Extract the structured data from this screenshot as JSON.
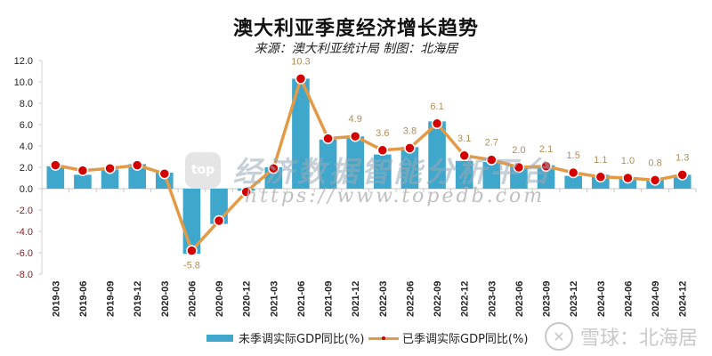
{
  "header": {
    "title": "澳大利亚季度经济增长趋势",
    "subtitle": "来源：澳大利亚统计局 制图：北海居"
  },
  "watermarks": {
    "center_logo": "top",
    "center_text": "经济数据智能分析平台",
    "center_url": "https://www.topedb.com",
    "corner_text": "雪球：北海居"
  },
  "legend": {
    "bar_label": "未季调实际GDP同比(%)",
    "line_label": "已季调实际GDP同比(%)"
  },
  "colors": {
    "bar": "#3ea7cb",
    "bar_light": "#6cc0dc",
    "line": "#e39a47",
    "marker": "#d40000",
    "label": "#b08d5a",
    "neg_tick": "#8b1a1a"
  },
  "chart_data": {
    "type": "bar+line",
    "title": "澳大利亚季度经济增长趋势",
    "subtitle": "来源：澳大利亚统计局 制图：北海居",
    "xlabel": "",
    "ylabel": "",
    "ylim": [
      -8.0,
      12.0
    ],
    "yticks": [
      "12.0",
      "10.0",
      "8.0",
      "6.0",
      "4.0",
      "2.0",
      "0.0",
      "-2.0",
      "-4.0",
      "-6.0",
      "-8.0"
    ],
    "grid": false,
    "legend_position": "bottom",
    "categories": [
      "2019-03",
      "2019-06",
      "2019-09",
      "2019-12",
      "2020-03",
      "2020-06",
      "2020-09",
      "2020-12",
      "2021-03",
      "2021-06",
      "2021-09",
      "2021-12",
      "2022-03",
      "2022-06",
      "2022-09",
      "2022-12",
      "2023-03",
      "2023-06",
      "2023-09",
      "2023-12",
      "2024-03",
      "2024-06",
      "2024-09",
      "2024-12"
    ],
    "series": [
      {
        "name": "未季调实际GDP同比(%)",
        "type": "bar",
        "values": [
          2.1,
          1.3,
          1.8,
          2.3,
          1.5,
          -6.1,
          -3.3,
          -0.2,
          2.0,
          10.3,
          4.6,
          4.9,
          3.2,
          3.9,
          6.3,
          2.6,
          2.5,
          2.1,
          2.2,
          1.2,
          1.3,
          1.0,
          0.8,
          1.3
        ]
      },
      {
        "name": "已季调实际GDP同比(%)",
        "type": "line",
        "values": [
          2.2,
          1.7,
          1.9,
          2.2,
          1.4,
          -5.8,
          -3.0,
          -0.3,
          1.9,
          10.3,
          4.7,
          4.9,
          3.6,
          3.8,
          6.1,
          3.1,
          2.7,
          2.0,
          2.1,
          1.5,
          1.1,
          1.0,
          0.8,
          1.3
        ],
        "data_labels": {
          "5": "-5.8",
          "9": "10.3",
          "11": "4.9",
          "12": "3.6",
          "13": "3.8",
          "14": "6.1",
          "15": "3.1",
          "16": "2.7",
          "17": "2.0",
          "18": "2.1",
          "19": "1.5",
          "20": "1.1",
          "21": "1.0",
          "22": "0.8",
          "23": "1.3"
        }
      }
    ]
  }
}
